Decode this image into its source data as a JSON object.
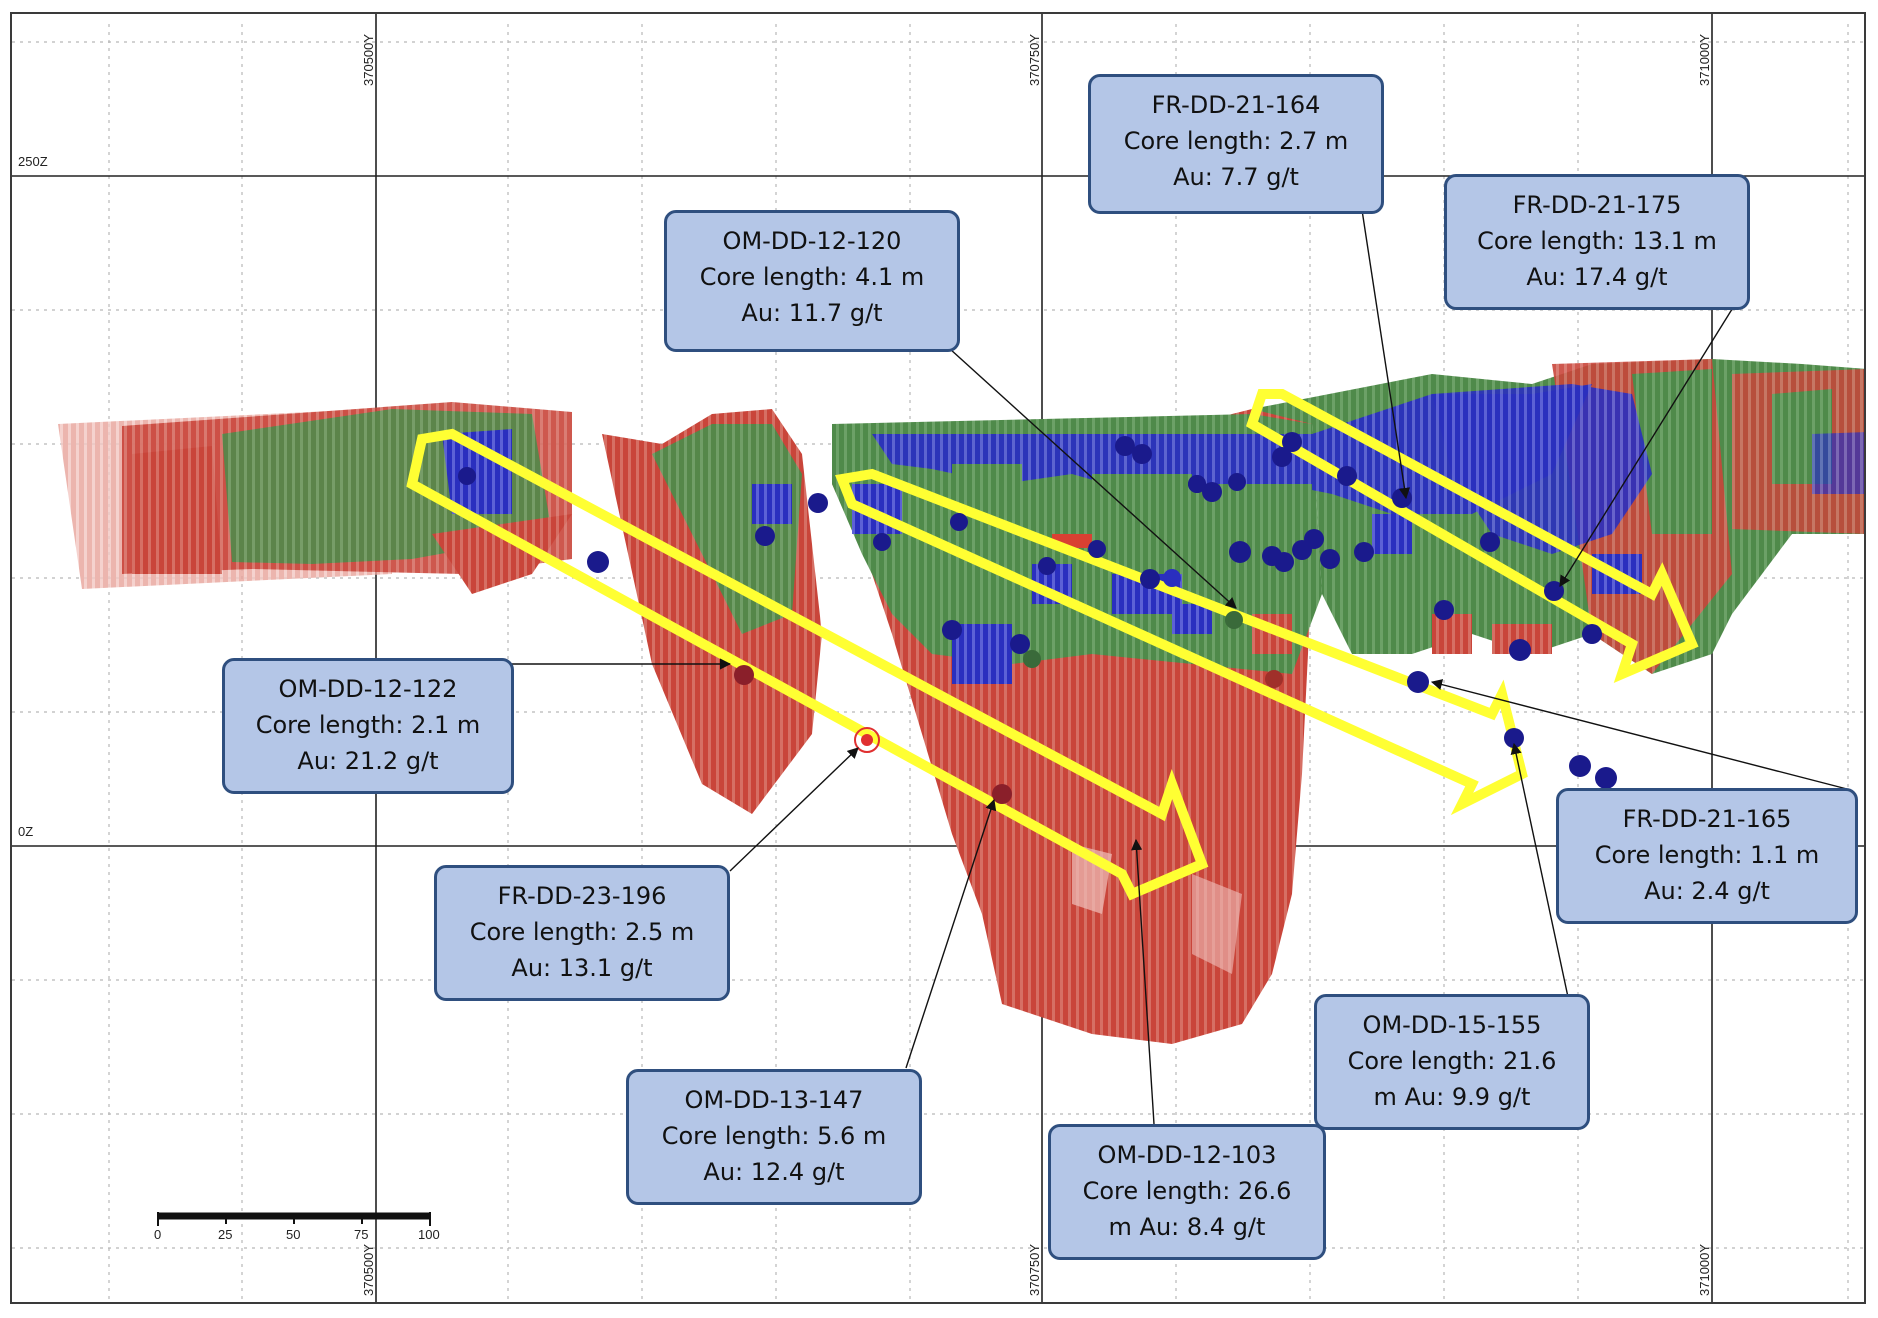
{
  "axes": {
    "easting_labels": [
      "370500Y",
      "370750Y",
      "371000Y"
    ],
    "elevation_labels": [
      "250Z",
      "0Z"
    ]
  },
  "scale_bar": {
    "ticks": [
      "0",
      "25",
      "50",
      "75",
      "100"
    ]
  },
  "callouts": [
    {
      "id": "OM-DD-12-120",
      "lines": [
        "OM-DD-12-120",
        "Core length: 4.1 m",
        "Au: 11.7 g/t"
      ]
    },
    {
      "id": "FR-DD-21-164",
      "lines": [
        "FR-DD-21-164",
        "Core length: 2.7 m",
        "Au: 7.7 g/t"
      ]
    },
    {
      "id": "FR-DD-21-175",
      "lines": [
        "FR-DD-21-175",
        "Core length: 13.1 m",
        "Au: 17.4 g/t"
      ]
    },
    {
      "id": "OM-DD-12-122",
      "lines": [
        "OM-DD-12-122",
        "Core length: 2.1 m",
        "Au: 21.2 g/t"
      ]
    },
    {
      "id": "FR-DD-23-196",
      "lines": [
        "FR-DD-23-196",
        "Core length: 2.5 m",
        "Au: 13.1 g/t"
      ]
    },
    {
      "id": "FR-DD-21-165",
      "lines": [
        "FR-DD-21-165",
        "Core length: 1.1 m",
        "Au: 2.4 g/t"
      ]
    },
    {
      "id": "OM-DD-15-155",
      "lines": [
        "OM-DD-15-155",
        "Core length: 21.6",
        "m Au: 9.9 g/t"
      ]
    },
    {
      "id": "OM-DD-13-147",
      "lines": [
        "OM-DD-13-147",
        "Core length: 5.6 m",
        "Au: 12.4 g/t"
      ]
    },
    {
      "id": "OM-DD-12-103",
      "lines": [
        "OM-DD-12-103",
        "Core length: 26.6",
        "m Au: 8.4 g/t"
      ]
    }
  ],
  "colors": {
    "red_block": "#c0392b",
    "green_block": "#4f8a4a",
    "blue_block": "#2a2fbf",
    "drill_point": "#1a1a8c",
    "arrow_outline": "#ffff33",
    "callout_fill": "#b4c6e7",
    "callout_border": "#2f4f7f"
  }
}
